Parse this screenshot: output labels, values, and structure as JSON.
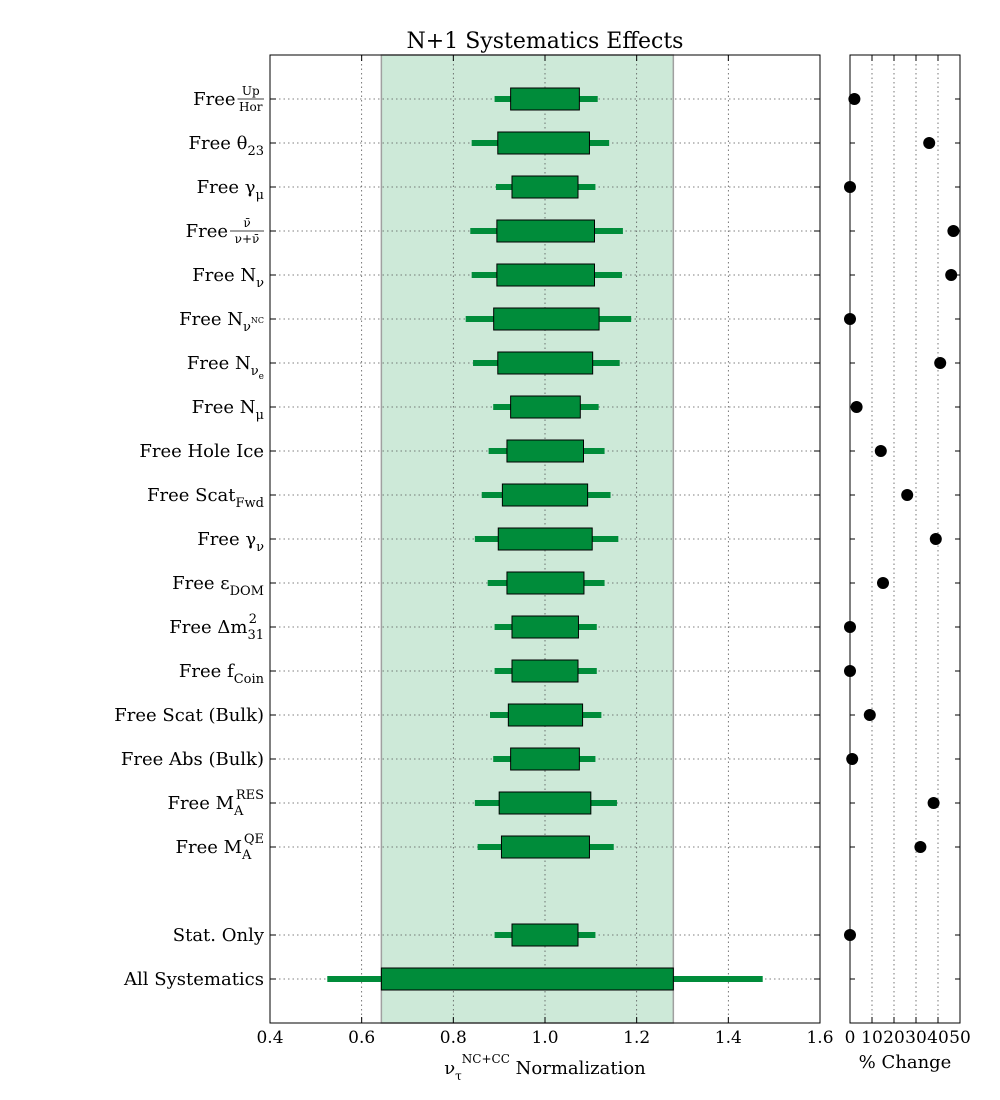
{
  "chart_data": [
    {
      "type": "box-range",
      "title": "N+1 Systematics Effects",
      "xlabel": {
        "base": "ν",
        "sub": "τ",
        "sup": "NC+CC",
        "rest": " Normalization"
      },
      "xlim": [
        0.4,
        1.6
      ],
      "xticks": [
        "0.4",
        "0.6",
        "0.8",
        "1.0",
        "1.2",
        "1.4",
        "1.6"
      ],
      "grid": true,
      "band": {
        "from": 0.643,
        "to": 1.28
      },
      "rows": [
        {
          "label": {
            "text": "Free ",
            "frac_num": "Up",
            "frac_den": "Hor"
          },
          "box": [
            0.925,
            1.075
          ],
          "whisker": [
            0.89,
            1.115
          ]
        },
        {
          "label": {
            "text": "Free θ",
            "sub": "23"
          },
          "box": [
            0.897,
            1.097
          ],
          "whisker": [
            0.84,
            1.14
          ]
        },
        {
          "label": {
            "text": "Free γ",
            "sub": "μ"
          },
          "box": [
            0.928,
            1.072
          ],
          "whisker": [
            0.893,
            1.11
          ]
        },
        {
          "label": {
            "text": "Free ",
            "frac_num": "ν̄",
            "frac_den": "ν+ν̄"
          },
          "box": [
            0.895,
            1.108
          ],
          "whisker": [
            0.837,
            1.17
          ]
        },
        {
          "label": {
            "text": "Free N",
            "sub": "ν"
          },
          "box": [
            0.895,
            1.108
          ],
          "whisker": [
            0.84,
            1.168
          ]
        },
        {
          "label": {
            "text": "Free N",
            "sub": "ν",
            "subsup": "NC"
          },
          "box": [
            0.888,
            1.118
          ],
          "whisker": [
            0.827,
            1.188
          ]
        },
        {
          "label": {
            "text": "Free N",
            "sub": "ν",
            "subsub": "e"
          },
          "box": [
            0.897,
            1.104
          ],
          "whisker": [
            0.843,
            1.163
          ]
        },
        {
          "label": {
            "text": "Free N",
            "sub": "μ"
          },
          "box": [
            0.925,
            1.077
          ],
          "whisker": [
            0.887,
            1.117
          ]
        },
        {
          "label": {
            "text": "Free Hole Ice"
          },
          "box": [
            0.917,
            1.084
          ],
          "whisker": [
            0.877,
            1.13
          ]
        },
        {
          "label": {
            "text": "Free Scat",
            "sub": "Fwd"
          },
          "box": [
            0.907,
            1.093
          ],
          "whisker": [
            0.862,
            1.143
          ]
        },
        {
          "label": {
            "text": "Free γ",
            "sub": "ν"
          },
          "box": [
            0.898,
            1.103
          ],
          "whisker": [
            0.847,
            1.16
          ]
        },
        {
          "label": {
            "text": "Free ε",
            "sub": "DOM"
          },
          "box": [
            0.917,
            1.085
          ],
          "whisker": [
            0.875,
            1.13
          ]
        },
        {
          "label": {
            "text": "Free Δm",
            "sub": "31",
            "sup": "2"
          },
          "box": [
            0.928,
            1.073
          ],
          "whisker": [
            0.89,
            1.113
          ]
        },
        {
          "label": {
            "text": "Free f",
            "sub": "Coin"
          },
          "box": [
            0.928,
            1.072
          ],
          "whisker": [
            0.89,
            1.113
          ]
        },
        {
          "label": {
            "text": "Free Scat (Bulk)"
          },
          "box": [
            0.92,
            1.082
          ],
          "whisker": [
            0.88,
            1.123
          ]
        },
        {
          "label": {
            "text": "Free Abs (Bulk)"
          },
          "box": [
            0.925,
            1.075
          ],
          "whisker": [
            0.887,
            1.11
          ]
        },
        {
          "label": {
            "text": "Free M",
            "sub": "A",
            "sup": "RES"
          },
          "box": [
            0.9,
            1.1
          ],
          "whisker": [
            0.847,
            1.157
          ]
        },
        {
          "label": {
            "text": "Free M",
            "sub": "A",
            "sup": "QE"
          },
          "box": [
            0.905,
            1.097
          ],
          "whisker": [
            0.853,
            1.15
          ]
        },
        {
          "label": {
            "text": "Stat. Only"
          },
          "box": [
            0.928,
            1.072
          ],
          "whisker": [
            0.89,
            1.11
          ]
        },
        {
          "label": {
            "text": "All Systematics"
          },
          "box": [
            0.643,
            1.28
          ],
          "whisker": [
            0.525,
            1.475
          ]
        }
      ],
      "colors": {
        "box": "#008c3a",
        "whisker": "#008c3a",
        "band": "#cde9d8",
        "band_edge": "#a0a0a0"
      }
    },
    {
      "type": "scatter",
      "xlabel": "% Change",
      "xlim": [
        0,
        50
      ],
      "xticks": [
        "0",
        "10",
        "20",
        "30",
        "40",
        "50"
      ],
      "grid": true,
      "values": [
        2,
        36,
        0,
        47,
        46,
        0,
        41,
        3,
        14,
        26,
        39,
        15,
        0,
        0,
        9,
        1,
        38,
        32,
        0,
        null
      ],
      "colors": {
        "marker": "#000000"
      }
    }
  ]
}
